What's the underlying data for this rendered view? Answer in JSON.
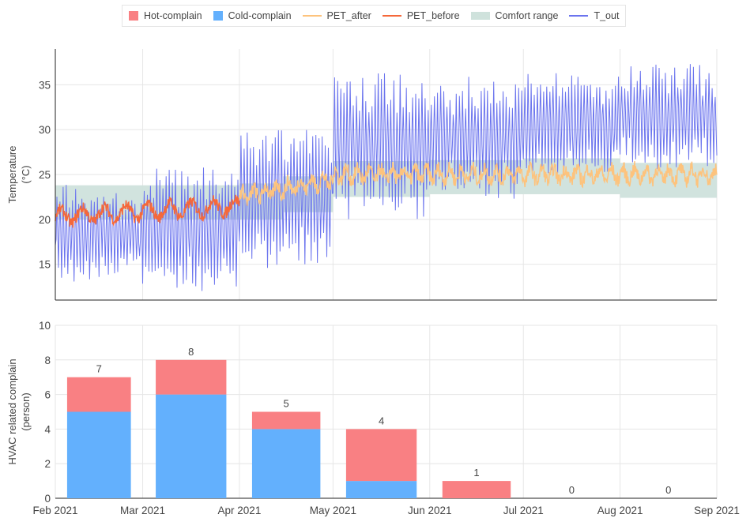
{
  "legend": [
    {
      "name": "Hot-complain",
      "kind": "box",
      "color": "#f98083"
    },
    {
      "name": "Cold-complain",
      "kind": "box",
      "color": "#63b0fd"
    },
    {
      "name": "PET_after",
      "kind": "line",
      "color": "#fdc37d"
    },
    {
      "name": "PET_before",
      "kind": "line",
      "color": "#f5683a"
    },
    {
      "name": "Comfort range",
      "kind": "band",
      "color": "#cfe2dc"
    },
    {
      "name": "T_out",
      "kind": "line",
      "color": "#6b74ee"
    }
  ],
  "chart_data": [
    {
      "type": "line",
      "ylabel": "Temperature (°C)",
      "ylim": [
        11,
        39
      ],
      "yticks": [
        15,
        20,
        25,
        30,
        35
      ],
      "x_range": [
        "2021-02-01",
        "2021-09-01"
      ],
      "grid": true,
      "series": [
        {
          "name": "T_out",
          "color": "#6b74ee",
          "note_daily_range": {
            "months": [
              "2021-02",
              "2021-03",
              "2021-04",
              "2021-05",
              "2021-06",
              "2021-07",
              "2021-08"
            ],
            "daily_min": [
              14,
              13,
              15,
              21,
              23,
              25,
              26
            ],
            "daily_max": [
              23,
              25,
              30,
              36,
              35,
              36,
              37
            ]
          }
        },
        {
          "name": "PET_before",
          "color": "#f5683a",
          "period": [
            "2021-02-01",
            "2021-04-01"
          ],
          "values_range": [
            19,
            23
          ]
        },
        {
          "name": "PET_after",
          "color": "#fdc37d",
          "period": [
            "2021-04-01",
            "2021-09-01"
          ],
          "values_range": [
            21,
            27
          ]
        }
      ],
      "comfort_range": [
        {
          "start": "2021-02-01",
          "end": "2021-04-01",
          "low": 20.0,
          "high": 23.8
        },
        {
          "start": "2021-04-01",
          "end": "2021-04-15",
          "low": 20.0,
          "high": 24.0
        },
        {
          "start": "2021-04-15",
          "end": "2021-05-01",
          "low": 20.8,
          "high": 24.8
        },
        {
          "start": "2021-05-01",
          "end": "2021-06-01",
          "low": 22.5,
          "high": 26.5
        },
        {
          "start": "2021-06-01",
          "end": "2021-07-01",
          "low": 22.8,
          "high": 26.6
        },
        {
          "start": "2021-07-01",
          "end": "2021-08-01",
          "low": 22.8,
          "high": 26.8
        },
        {
          "start": "2021-08-01",
          "end": "2021-09-01",
          "low": 22.4,
          "high": 26.3
        }
      ]
    },
    {
      "type": "bar",
      "stacked": true,
      "ylabel": "HVAC related complain (person)",
      "ylim": [
        0,
        10
      ],
      "yticks": [
        0,
        2,
        4,
        6,
        8,
        10
      ],
      "categories": [
        "2021-02",
        "2021-03",
        "2021-04",
        "2021-05",
        "2021-06",
        "2021-07",
        "2021-08"
      ],
      "series": [
        {
          "name": "Cold-complain",
          "color": "#63b0fd",
          "values": [
            5,
            6,
            4,
            1,
            0,
            0,
            0
          ]
        },
        {
          "name": "Hot-complain",
          "color": "#f98083",
          "values": [
            2,
            2,
            1,
            3,
            1,
            0,
            0
          ]
        }
      ],
      "totals": [
        7,
        8,
        5,
        4,
        1,
        0,
        0
      ]
    }
  ],
  "x_axis": {
    "ticks": [
      "Feb 2021",
      "Mar 2021",
      "Apr 2021",
      "May 2021",
      "Jun 2021",
      "Jul 2021",
      "Aug 2021",
      "Sep 2021"
    ],
    "tick_dates": [
      "2021-02-01",
      "2021-03-01",
      "2021-04-01",
      "2021-05-01",
      "2021-06-01",
      "2021-07-01",
      "2021-08-01",
      "2021-09-01"
    ]
  }
}
